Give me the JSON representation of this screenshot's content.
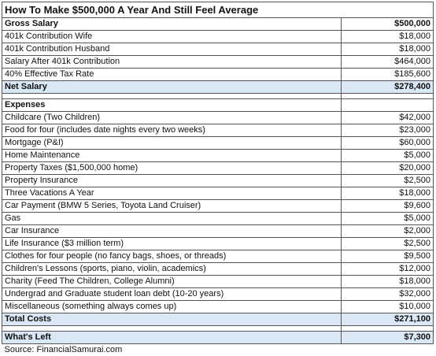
{
  "title": "How To Make $500,000 A Year And Still Feel Average",
  "gross": {
    "header": {
      "label": "Gross Salary",
      "value": "$500,000"
    },
    "rows": [
      {
        "label": "401k Contribution Wife",
        "value": "$18,000"
      },
      {
        "label": "401k Contribution Husband",
        "value": "$18,000"
      },
      {
        "label": "Salary After 401k Contribution",
        "value": "$464,000"
      },
      {
        "label": "40% Effective Tax Rate",
        "value": "$185,600"
      }
    ],
    "net": {
      "label": "Net Salary",
      "value": "$278,400"
    }
  },
  "expenses": {
    "header": {
      "label": "Expenses"
    },
    "rows": [
      {
        "label": "Childcare (Two Children)",
        "value": "$42,000"
      },
      {
        "label": "Food for four (includes date nights every two weeks)",
        "value": "$23,000"
      },
      {
        "label": "Mortgage (P&I)",
        "value": "$60,000"
      },
      {
        "label": "Home Maintenance",
        "value": "$5,000"
      },
      {
        "label": "Property Taxes ($1,500,000 home)",
        "value": "$20,000"
      },
      {
        "label": "Property Insurance",
        "value": "$2,500"
      },
      {
        "label": "Three Vacations A Year",
        "value": "$18,000"
      },
      {
        "label": "Car Payment (BMW 5 Series, Toyota Land Cruiser)",
        "value": "$9,600"
      },
      {
        "label": "Gas",
        "value": "$5,000"
      },
      {
        "label": "Car Insurance",
        "value": "$2,000"
      },
      {
        "label": "Life Insurance ($3 million term)",
        "value": "$2,500"
      },
      {
        "label": "Clothes for four people (no fancy bags, shoes, or threads)",
        "value": "$9,500"
      },
      {
        "label": "Children's Lessons (sports, piano, violin, academics)",
        "value": "$12,000"
      },
      {
        "label": "Charity (Feed The Children, College Alumni)",
        "value": "$18,000"
      },
      {
        "label": "Undergrad and Graduate student loan debt (10-20 years)",
        "value": "$32,000"
      },
      {
        "label": "Miscellaneous (something always comes up)",
        "value": "$10,000"
      }
    ],
    "total": {
      "label": "Total Costs",
      "value": "$271,100"
    }
  },
  "left": {
    "label": "What's Left",
    "value": "$7,300"
  },
  "source": "Source: FinancialSamurai.com",
  "colors": {
    "highlight": "#d9e8f4",
    "border": "#555555"
  }
}
